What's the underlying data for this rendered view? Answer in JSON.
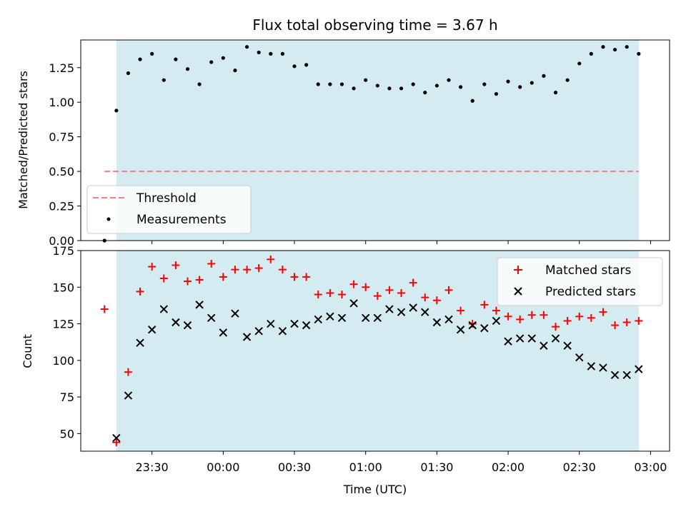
{
  "chart_data": [
    {
      "type": "scatter",
      "title": "Flux total observing time = 3.67 h",
      "ylabel": "Matched/Predicted stars",
      "xlabel": "",
      "ylim": [
        0,
        1.45
      ],
      "yticks": [
        "0.00",
        "0.25",
        "0.50",
        "0.75",
        "1.00",
        "1.25"
      ],
      "yticks_values": [
        0,
        0.25,
        0.5,
        0.75,
        1.0,
        1.25
      ],
      "xlim_minutes": [
        -60,
        188
      ],
      "shaded_region_minutes": [
        -45,
        175
      ],
      "shade_color": "#d4ebf1",
      "legend_position": "lower-left",
      "threshold": {
        "name": "Threshold",
        "value": 0.5,
        "x_range_minutes": [
          -50,
          175
        ],
        "color": "#f08080"
      },
      "series": [
        {
          "name": "Measurements",
          "color": "#000000",
          "marker": "dot",
          "x_minutes": [
            -50,
            -45,
            -40,
            -35,
            -30,
            -25,
            -20,
            -15,
            -10,
            -5,
            0,
            5,
            10,
            15,
            20,
            25,
            30,
            35,
            40,
            45,
            50,
            55,
            60,
            65,
            70,
            75,
            80,
            85,
            90,
            95,
            100,
            105,
            110,
            115,
            120,
            125,
            130,
            135,
            140,
            145,
            150,
            155,
            160,
            165,
            170,
            175
          ],
          "values": [
            0.0,
            0.94,
            1.21,
            1.31,
            1.35,
            1.16,
            1.31,
            1.24,
            1.13,
            1.29,
            1.32,
            1.23,
            1.4,
            1.36,
            1.35,
            1.35,
            1.26,
            1.27,
            1.13,
            1.13,
            1.13,
            1.1,
            1.16,
            1.12,
            1.1,
            1.1,
            1.13,
            1.07,
            1.12,
            1.16,
            1.11,
            1.01,
            1.13,
            1.06,
            1.15,
            1.11,
            1.14,
            1.19,
            1.07,
            1.16,
            1.28,
            1.35,
            1.4,
            1.38,
            1.4,
            1.35
          ]
        }
      ]
    },
    {
      "type": "scatter",
      "title": "",
      "xlabel": "Time (UTC)",
      "ylabel": "Count",
      "ylim": [
        38,
        175
      ],
      "yticks": [
        "50",
        "75",
        "100",
        "125",
        "150",
        "175"
      ],
      "yticks_values": [
        50,
        75,
        100,
        125,
        150,
        175
      ],
      "xlim_minutes": [
        -60,
        188
      ],
      "xticks": [
        "23:30",
        "00:00",
        "00:30",
        "01:00",
        "01:30",
        "02:00",
        "02:30",
        "03:00"
      ],
      "xticks_minutes": [
        -30,
        0,
        30,
        60,
        90,
        120,
        150,
        180
      ],
      "shaded_region_minutes": [
        -45,
        175
      ],
      "shade_color": "#d4ebf1",
      "legend_position": "upper-right",
      "series": [
        {
          "name": "Matched stars",
          "color": "#ff0000",
          "marker": "plus",
          "x_minutes": [
            -50,
            -45,
            -40,
            -35,
            -30,
            -25,
            -20,
            -15,
            -10,
            -5,
            0,
            5,
            10,
            15,
            20,
            25,
            30,
            35,
            40,
            45,
            50,
            55,
            60,
            65,
            70,
            75,
            80,
            85,
            90,
            95,
            100,
            105,
            110,
            115,
            120,
            125,
            130,
            135,
            140,
            145,
            150,
            155,
            160,
            165,
            170,
            175
          ],
          "values": [
            135,
            44,
            92,
            147,
            164,
            156,
            165,
            154,
            155,
            166,
            157,
            162,
            162,
            163,
            169,
            162,
            157,
            157,
            145,
            146,
            145,
            152,
            150,
            144,
            148,
            146,
            153,
            143,
            141,
            148,
            134,
            125,
            138,
            134,
            130,
            128,
            131,
            131,
            123,
            127,
            130,
            129,
            133,
            124,
            126,
            127
          ]
        },
        {
          "name": "Predicted stars",
          "color": "#000000",
          "marker": "x",
          "x_minutes": [
            -45,
            -40,
            -35,
            -30,
            -25,
            -20,
            -15,
            -10,
            -5,
            0,
            5,
            10,
            15,
            20,
            25,
            30,
            35,
            40,
            45,
            50,
            55,
            60,
            65,
            70,
            75,
            80,
            85,
            90,
            95,
            100,
            105,
            110,
            115,
            120,
            125,
            130,
            135,
            140,
            145,
            150,
            155,
            160,
            165,
            170,
            175
          ],
          "values": [
            47,
            76,
            112,
            121,
            135,
            126,
            124,
            138,
            129,
            119,
            132,
            116,
            120,
            125,
            120,
            125,
            124,
            128,
            130,
            129,
            139,
            129,
            129,
            135,
            133,
            136,
            133,
            126,
            128,
            121,
            124,
            122,
            127,
            113,
            115,
            115,
            110,
            115,
            110,
            102,
            96,
            95,
            90,
            90,
            94
          ]
        }
      ]
    }
  ]
}
